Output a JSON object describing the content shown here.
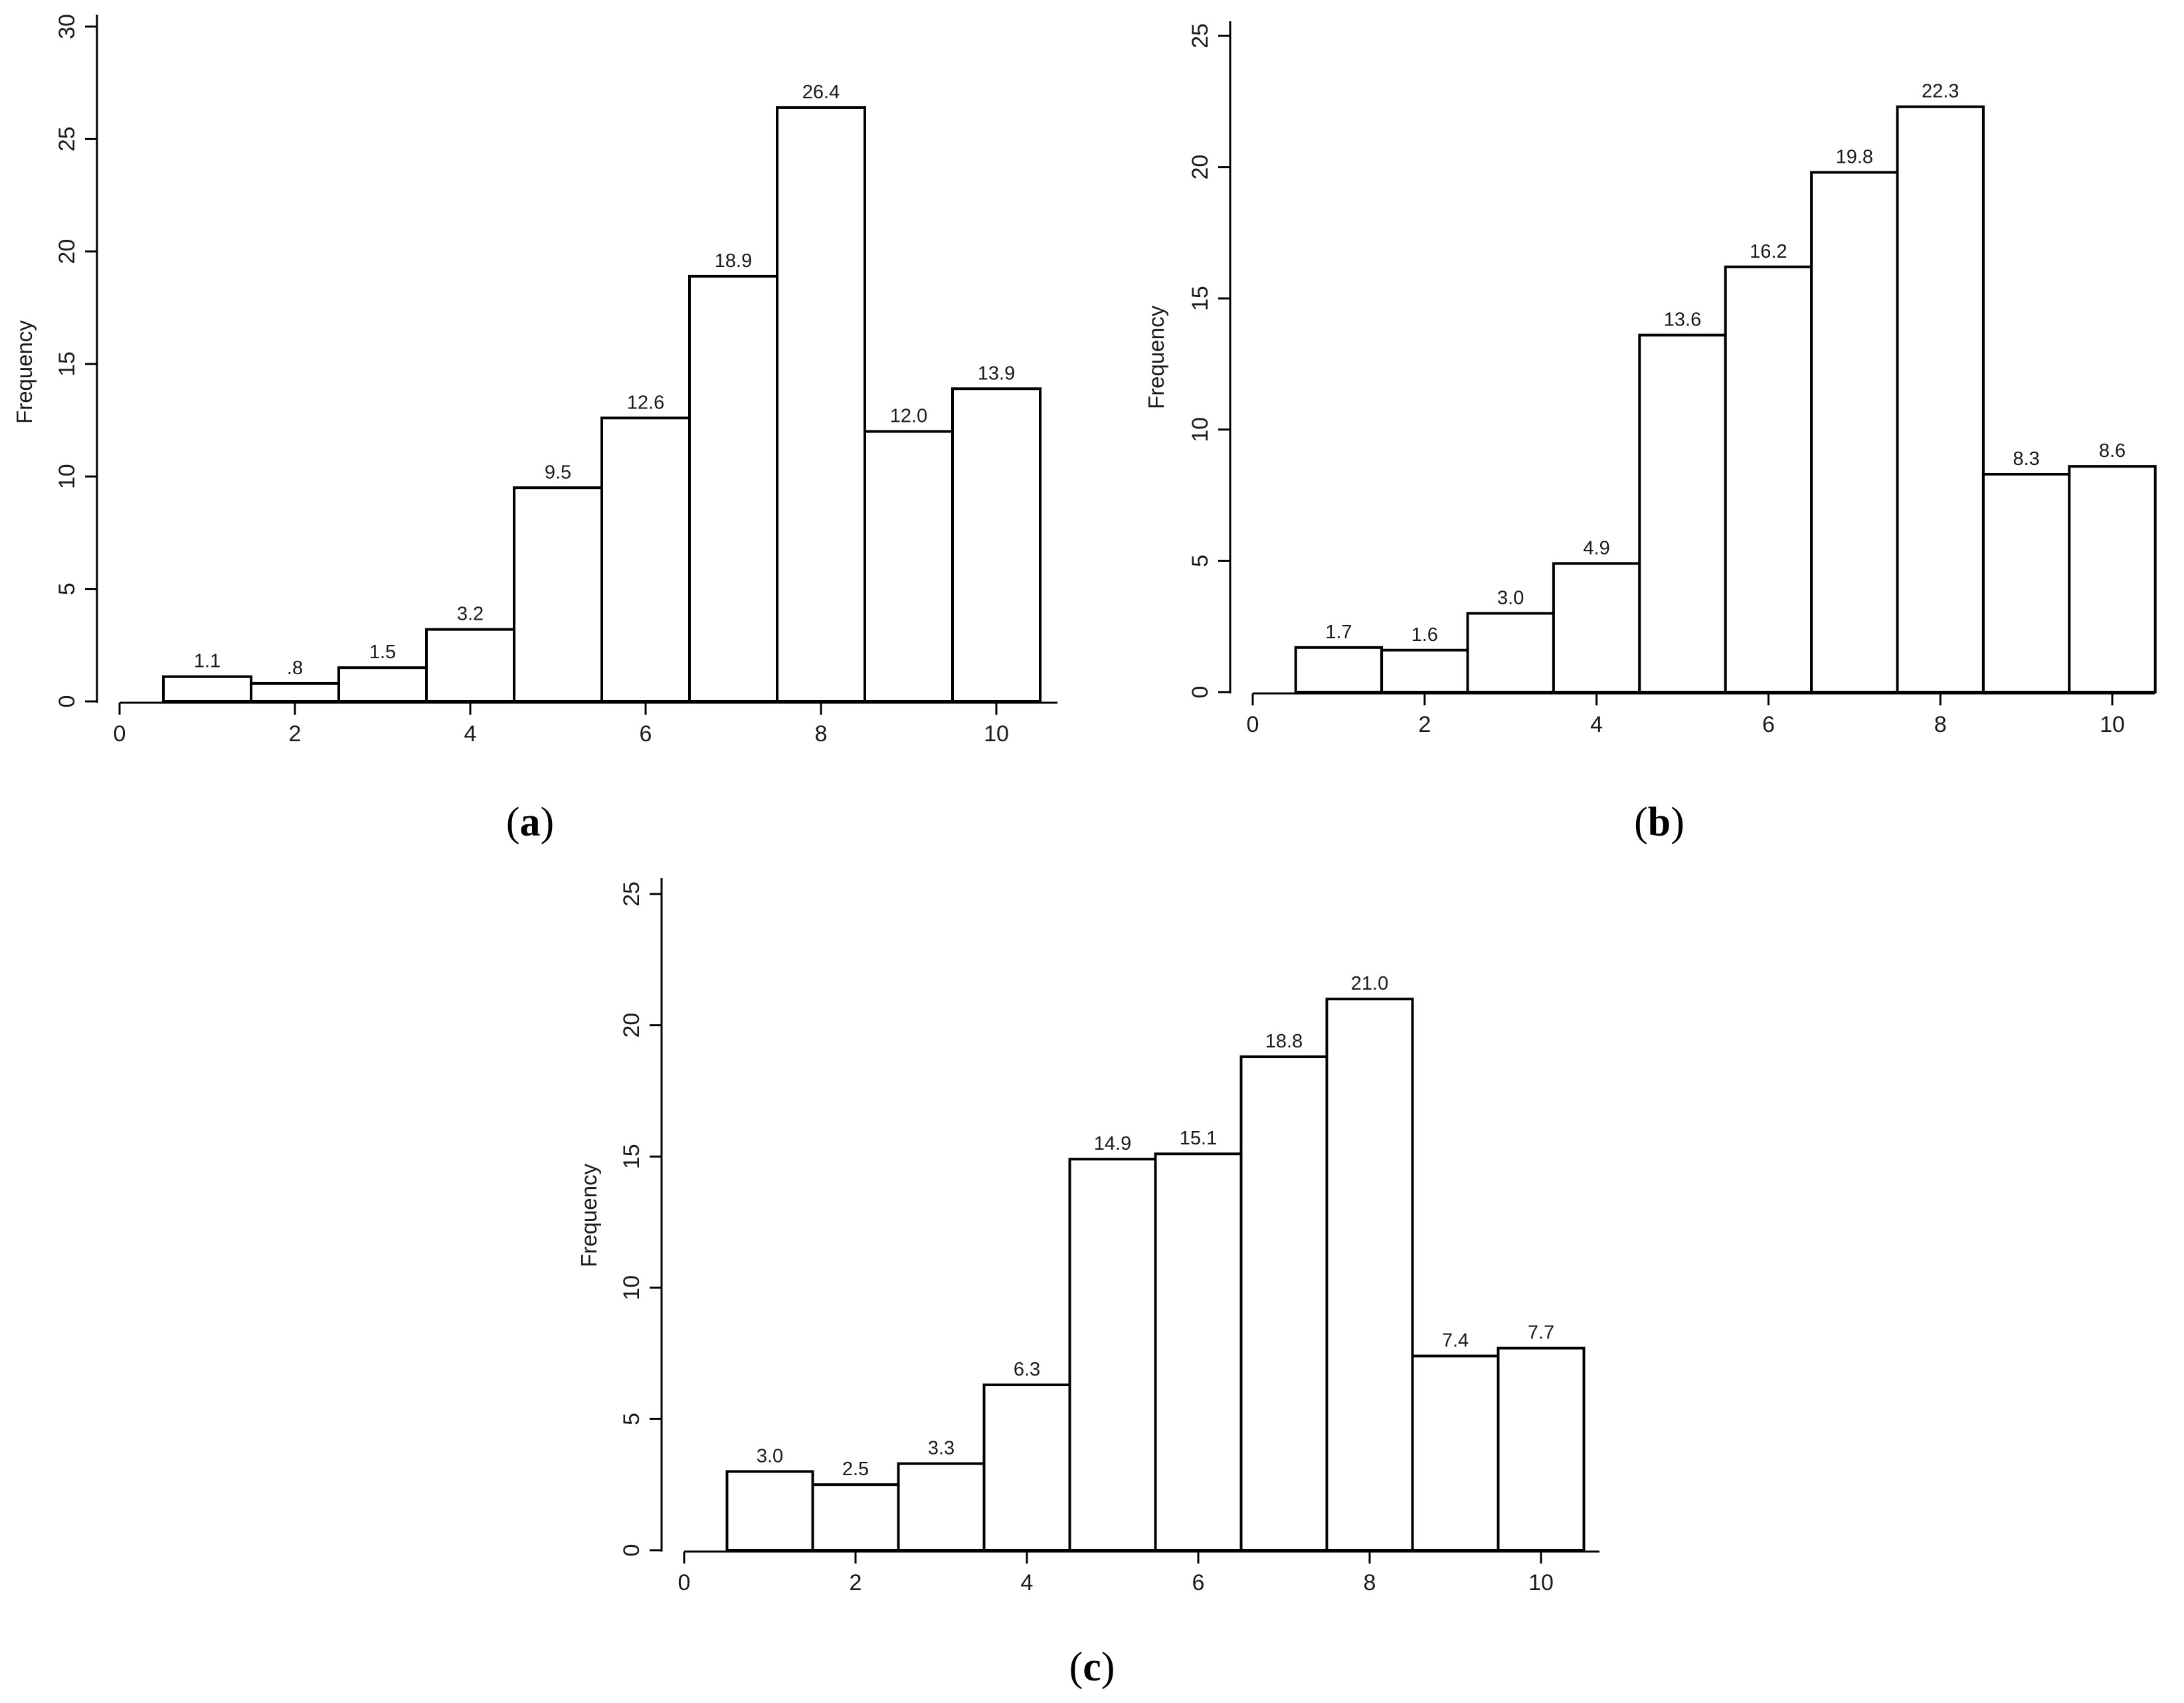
{
  "chart_data": [
    {
      "id": "a",
      "panel_label": "a",
      "type": "bar",
      "ylabel": "Frequency",
      "xlim": [
        0,
        10
      ],
      "ylim": [
        0,
        30
      ],
      "x_ticks": [
        0,
        2,
        4,
        6,
        8,
        10
      ],
      "y_ticks": [
        0,
        5,
        10,
        15,
        20,
        25,
        30
      ],
      "x_tick_labels": [
        "0",
        "2",
        "4",
        "6",
        "8",
        "10"
      ],
      "y_tick_labels": [
        "0",
        "5",
        "10",
        "15",
        "20",
        "25",
        "30"
      ],
      "bins": [
        1,
        2,
        3,
        4,
        5,
        6,
        7,
        8,
        9,
        10
      ],
      "values": [
        1.1,
        0.8,
        1.5,
        3.2,
        9.5,
        12.6,
        18.9,
        26.4,
        12.0,
        13.9
      ],
      "data_labels": [
        "1.1",
        ".8",
        "1.5",
        "3.2",
        "9.5",
        "12.6",
        "18.9",
        "26.4",
        "12.0",
        "13.9"
      ],
      "grid": false
    },
    {
      "id": "b",
      "panel_label": "b",
      "type": "bar",
      "ylabel": "Frequency",
      "xlim": [
        0,
        10
      ],
      "ylim": [
        0,
        25
      ],
      "x_ticks": [
        0,
        2,
        4,
        6,
        8,
        10
      ],
      "y_ticks": [
        0,
        5,
        10,
        15,
        20,
        25
      ],
      "x_tick_labels": [
        "0",
        "2",
        "4",
        "6",
        "8",
        "10"
      ],
      "y_tick_labels": [
        "0",
        "5",
        "10",
        "15",
        "20",
        "25"
      ],
      "bins": [
        1,
        2,
        3,
        4,
        5,
        6,
        7,
        8,
        9,
        10
      ],
      "values": [
        1.7,
        1.6,
        3.0,
        4.9,
        13.6,
        16.2,
        19.8,
        22.3,
        8.3,
        8.6
      ],
      "data_labels": [
        "1.7",
        "1.6",
        "3.0",
        "4.9",
        "13.6",
        "16.2",
        "19.8",
        "22.3",
        "8.3",
        "8.6"
      ],
      "grid": false
    },
    {
      "id": "c",
      "panel_label": "c",
      "type": "bar",
      "ylabel": "Frequency",
      "xlim": [
        0,
        10
      ],
      "ylim": [
        0,
        25
      ],
      "x_ticks": [
        0,
        2,
        4,
        6,
        8,
        10
      ],
      "y_ticks": [
        0,
        5,
        10,
        15,
        20,
        25
      ],
      "x_tick_labels": [
        "0",
        "2",
        "4",
        "6",
        "8",
        "10"
      ],
      "y_tick_labels": [
        "0",
        "5",
        "10",
        "15",
        "20",
        "25"
      ],
      "bins": [
        1,
        2,
        3,
        4,
        5,
        6,
        7,
        8,
        9,
        10
      ],
      "values": [
        3.0,
        2.5,
        3.3,
        6.3,
        14.9,
        15.1,
        18.8,
        21.0,
        7.4,
        7.7
      ],
      "data_labels": [
        "3.0",
        "2.5",
        "3.3",
        "6.3",
        "14.9",
        "15.1",
        "18.8",
        "21.0",
        "7.4",
        "7.7"
      ],
      "grid": false
    }
  ]
}
